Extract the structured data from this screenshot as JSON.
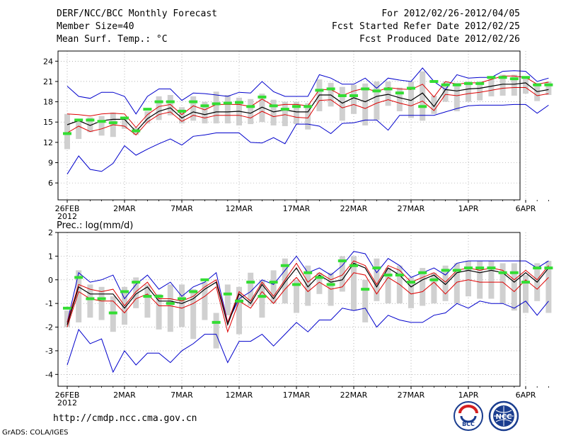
{
  "header": {
    "title": "DERF/NCC/BCC Monthly Forecast",
    "member_size": "Member Size=40",
    "variable": "Mean Surf. Temp.: °C",
    "fcst_range": "For 2012/02/26-2012/04/05",
    "refer_date": "Fcst Started Refer Date 2012/02/25",
    "produced_date": "Fcst Produced Date 2012/02/26"
  },
  "footer": {
    "url": "http://cmdp.ncc.cma.gov.cn",
    "credit": "GrADS: COLA/IGES",
    "logo_bcc": "BCC",
    "logo_ncc": "NCC"
  },
  "colors": {
    "ensemble_mean": "#000000",
    "spread": "#dd0000",
    "extremes": "#0000cc",
    "observed": "#33dd33",
    "boxes": "#d0d0d0",
    "grid": "#888888"
  },
  "chart_data": [
    {
      "type": "line",
      "title": "Mean Surf. Temp.: °C",
      "xlabel": "",
      "ylabel": "°C",
      "ylim": [
        3.5,
        25.5
      ],
      "yticks": [
        6,
        9,
        12,
        15,
        18,
        21,
        24
      ],
      "x_tick_labels": [
        "26FEB",
        "2MAR",
        "7MAR",
        "12MAR",
        "17MAR",
        "22MAR",
        "27MAR",
        "1APR",
        "6APR"
      ],
      "year_label": "2012",
      "series": [
        {
          "name": "max",
          "values": [
            20.3,
            18.8,
            18.5,
            19.4,
            19.4,
            18.8,
            16.2,
            18.8,
            19.9,
            19.9,
            18.2,
            19.3,
            19.2,
            19.0,
            18.8,
            19.4,
            19.3,
            21.0,
            19.5,
            18.8,
            18.8,
            18.8,
            22.0,
            21.5,
            20.6,
            20.6,
            21.5,
            20.0,
            21.5,
            21.2,
            21.0,
            23.0,
            21.0,
            19.8,
            22.0,
            21.5,
            21.6,
            21.6,
            22.5,
            22.6,
            22.5,
            21.0,
            21.5
          ]
        },
        {
          "name": "upper_spread",
          "values": [
            16.2,
            16.1,
            15.9,
            16.2,
            16.3,
            16.2,
            14.2,
            16.1,
            17.3,
            17.6,
            16.1,
            17.4,
            16.8,
            17.6,
            17.6,
            17.6,
            17.3,
            18.4,
            17.4,
            17.6,
            17.6,
            17.4,
            19.8,
            19.8,
            18.9,
            19.6,
            20.0,
            19.5,
            20.1,
            19.9,
            19.8,
            20.6,
            18.7,
            21.0,
            20.6,
            20.8,
            20.8,
            21.3,
            21.8,
            21.8,
            21.6,
            20.6,
            20.9
          ]
        },
        {
          "name": "ensemble_mean",
          "values": [
            14.6,
            15.2,
            14.5,
            15.2,
            15.4,
            15.4,
            13.6,
            15.5,
            16.6,
            17.1,
            15.6,
            16.5,
            16.1,
            16.5,
            16.5,
            16.6,
            16.3,
            17.2,
            16.5,
            16.8,
            16.5,
            16.5,
            19.0,
            19.0,
            17.8,
            18.6,
            18.0,
            18.8,
            19.1,
            18.6,
            18.2,
            19.3,
            17.3,
            19.8,
            19.6,
            19.9,
            20.0,
            20.3,
            20.6,
            20.6,
            20.8,
            19.5,
            19.8
          ]
        },
        {
          "name": "lower_spread",
          "values": [
            13.4,
            14.4,
            13.6,
            14.0,
            14.6,
            14.4,
            13.1,
            15.0,
            16.1,
            16.5,
            15.1,
            16.0,
            15.6,
            16.0,
            16.0,
            16.0,
            15.6,
            16.6,
            15.8,
            16.1,
            15.7,
            15.6,
            18.2,
            18.3,
            17.1,
            17.6,
            17.0,
            17.8,
            18.3,
            17.8,
            17.4,
            18.1,
            16.7,
            19.1,
            18.9,
            19.2,
            19.4,
            19.7,
            20.0,
            20.1,
            20.1,
            18.9,
            19.2
          ]
        },
        {
          "name": "min",
          "values": [
            7.3,
            10.0,
            8.0,
            7.7,
            8.9,
            11.5,
            10.1,
            11.0,
            11.8,
            12.5,
            11.6,
            12.9,
            13.1,
            13.4,
            13.4,
            13.4,
            12.0,
            11.9,
            12.7,
            11.8,
            14.7,
            14.7,
            14.4,
            13.3,
            14.8,
            14.9,
            15.3,
            15.3,
            13.8,
            16.0,
            16.0,
            16.0,
            16.0,
            16.5,
            17.0,
            17.4,
            17.5,
            17.5,
            17.5,
            17.6,
            17.6,
            16.3,
            17.5
          ]
        },
        {
          "name": "observed",
          "values": [
            13.3,
            15.3,
            15.3,
            15.1,
            14.9,
            15.6,
            13.7,
            16.9,
            18.0,
            18.0,
            16.6,
            18.0,
            17.4,
            17.7,
            17.8,
            17.9,
            17.3,
            18.7,
            17.4,
            16.9,
            17.3,
            17.3,
            19.7,
            19.9,
            18.9,
            18.9,
            19.9,
            19.6,
            19.9,
            19.3,
            20.0,
            17.3,
            21.0,
            20.5,
            20.5,
            20.7,
            20.7,
            21.6,
            21.6,
            21.4,
            21.6,
            20.5,
            20.5
          ]
        },
        {
          "name": "box_top",
          "values": [
            16.2,
            15.5,
            15.7,
            15.9,
            16.4,
            15.8,
            14.2,
            16.6,
            18.8,
            19.0,
            17.2,
            18.8,
            18.0,
            19.5,
            19.0,
            18.6,
            18.4,
            19.2,
            18.3,
            18.0,
            18.0,
            17.8,
            21.3,
            20.8,
            20.2,
            20.5,
            20.7,
            21.0,
            21.0,
            20.1,
            21.0,
            22.5,
            18.9,
            21.0,
            20.8,
            21.0,
            21.0,
            21.5,
            22.0,
            22.0,
            21.7,
            20.8,
            21.0
          ]
        },
        {
          "name": "box_bottom",
          "values": [
            11.0,
            12.5,
            13.5,
            13.0,
            12.8,
            14.0,
            13.1,
            14.8,
            15.3,
            16.0,
            14.8,
            15.2,
            14.8,
            14.8,
            14.8,
            14.5,
            14.7,
            15.0,
            14.5,
            14.4,
            14.7,
            13.9,
            16.6,
            17.3,
            15.2,
            16.2,
            14.5,
            15.3,
            17.4,
            16.6,
            15.6,
            15.2,
            16.2,
            18.0,
            16.6,
            18.0,
            18.2,
            18.8,
            18.9,
            18.9,
            19.2,
            18.1,
            19.0
          ]
        }
      ]
    },
    {
      "type": "line",
      "title": "Prec.: log(mm/d)",
      "xlabel": "",
      "ylabel": "log(mm/d)",
      "ylim": [
        -4.5,
        2.0
      ],
      "yticks": [
        -4,
        -3,
        -2,
        -1,
        0,
        1,
        2
      ],
      "x_tick_labels": [
        "26FEB",
        "2MAR",
        "7MAR",
        "12MAR",
        "17MAR",
        "22MAR",
        "27MAR",
        "1APR",
        "6APR"
      ],
      "year_label": "2012",
      "series": [
        {
          "name": "max",
          "values": [
            -1.8,
            0.3,
            -0.1,
            0.0,
            0.2,
            -0.8,
            -0.2,
            0.2,
            -0.4,
            -0.1,
            -0.7,
            -0.3,
            -0.1,
            0.3,
            -1.8,
            -0.8,
            -0.5,
            0.0,
            -0.2,
            0.4,
            1.0,
            0.3,
            0.5,
            0.2,
            0.6,
            1.2,
            1.1,
            0.3,
            0.9,
            0.6,
            0.1,
            0.3,
            0.5,
            0.2,
            0.7,
            0.8,
            0.8,
            0.8,
            0.8,
            0.8,
            0.8,
            0.5,
            0.8
          ]
        },
        {
          "name": "upper_spread",
          "values": [
            -1.8,
            -0.2,
            -0.4,
            -0.5,
            -0.4,
            -1.1,
            -0.5,
            -0.1,
            -0.8,
            -0.8,
            -0.9,
            -0.7,
            -0.3,
            0.0,
            -1.8,
            -0.5,
            -0.9,
            -0.1,
            -0.7,
            0.0,
            0.7,
            -0.1,
            0.3,
            0.0,
            0.2,
            0.8,
            0.6,
            -0.2,
            0.6,
            0.4,
            -0.1,
            0.1,
            0.3,
            -0.1,
            0.4,
            0.5,
            0.4,
            0.5,
            0.4,
            0.0,
            0.4,
            0.0,
            0.6
          ]
        },
        {
          "name": "ensemble_mean",
          "values": [
            -1.9,
            -0.3,
            -0.6,
            -0.6,
            -0.6,
            -1.2,
            -0.6,
            -0.3,
            -0.9,
            -0.9,
            -1.0,
            -0.8,
            -0.4,
            -0.1,
            -1.9,
            -0.6,
            -1.0,
            -0.2,
            -0.8,
            -0.1,
            0.5,
            -0.3,
            0.2,
            -0.1,
            0.0,
            0.7,
            0.5,
            -0.3,
            0.5,
            0.2,
            -0.3,
            0.0,
            0.2,
            -0.2,
            0.3,
            0.4,
            0.3,
            0.4,
            0.3,
            -0.1,
            0.3,
            -0.1,
            0.5
          ]
        },
        {
          "name": "lower_spread",
          "values": [
            -2.0,
            -0.5,
            -0.8,
            -0.9,
            -0.9,
            -1.4,
            -0.8,
            -0.6,
            -1.1,
            -1.1,
            -1.2,
            -1.0,
            -0.7,
            -0.3,
            -2.2,
            -0.9,
            -1.2,
            -0.5,
            -1.0,
            -0.4,
            0.1,
            -0.5,
            -0.1,
            -0.4,
            -0.3,
            0.3,
            0.2,
            -0.6,
            0.1,
            -0.2,
            -0.6,
            -0.5,
            -0.1,
            -0.6,
            -0.1,
            0.0,
            -0.1,
            -0.1,
            -0.1,
            -0.5,
            0.0,
            -0.4,
            0.1
          ]
        },
        {
          "name": "min",
          "values": [
            -3.6,
            -2.1,
            -2.7,
            -2.5,
            -3.9,
            -3.0,
            -3.6,
            -3.1,
            -3.1,
            -3.5,
            -3.0,
            -2.7,
            -2.3,
            -2.3,
            -3.5,
            -2.6,
            -2.6,
            -2.3,
            -2.8,
            -2.3,
            -1.8,
            -2.2,
            -1.7,
            -1.7,
            -1.2,
            -1.3,
            -1.2,
            -2.0,
            -1.5,
            -1.7,
            -1.8,
            -1.8,
            -1.5,
            -1.4,
            -1.0,
            -1.2,
            -0.9,
            -1.0,
            -1.0,
            -1.2,
            -0.9,
            -1.5,
            -0.9
          ]
        },
        {
          "name": "observed",
          "values": [
            -1.2,
            0.1,
            -0.8,
            -0.8,
            -1.4,
            -0.5,
            -0.1,
            -0.7,
            -0.7,
            -1.0,
            -0.8,
            -0.5,
            0.0,
            -1.8,
            -0.6,
            -0.9,
            -0.1,
            -0.7,
            -0.1,
            0.6,
            -0.2,
            0.3,
            0.1,
            -0.2,
            0.8,
            0.6,
            -0.4,
            0.5,
            0.2,
            0.2,
            -0.1,
            0.3,
            0.0,
            0.4,
            0.4,
            0.5,
            0.5,
            0.5,
            0.3,
            0.3,
            -0.1,
            0.5,
            0.5
          ]
        },
        {
          "name": "box_top",
          "values": [
            -1.3,
            0.4,
            -0.2,
            -0.3,
            -0.7,
            -0.3,
            0.1,
            -0.2,
            -0.6,
            -0.2,
            -0.2,
            -0.4,
            -0.1,
            -1.4,
            -0.2,
            -0.3,
            0.3,
            0.0,
            0.4,
            0.9,
            0.0,
            0.6,
            0.3,
            0.3,
            1.0,
            1.0,
            0.0,
            0.9,
            0.5,
            0.6,
            0.1,
            0.5,
            0.3,
            0.6,
            0.7,
            0.8,
            0.8,
            0.8,
            0.7,
            0.7,
            0.2,
            0.7,
            0.8
          ]
        },
        {
          "name": "box_bottom",
          "values": [
            -2.0,
            -1.8,
            -1.6,
            -1.7,
            -2.2,
            -1.9,
            -1.2,
            -1.6,
            -2.1,
            -2.2,
            -2.0,
            -2.5,
            -1.7,
            -2.9,
            -1.5,
            -2.3,
            -1.1,
            -1.6,
            -1.0,
            -1.0,
            -1.4,
            -1.1,
            -0.6,
            -1.1,
            -0.5,
            -1.3,
            -1.8,
            -0.9,
            -1.0,
            -1.0,
            -1.2,
            -1.1,
            -1.0,
            -0.9,
            -1.0,
            -0.7,
            -0.8,
            -0.8,
            -1.0,
            -1.3,
            -1.4,
            -0.9,
            -1.4
          ]
        }
      ]
    }
  ]
}
